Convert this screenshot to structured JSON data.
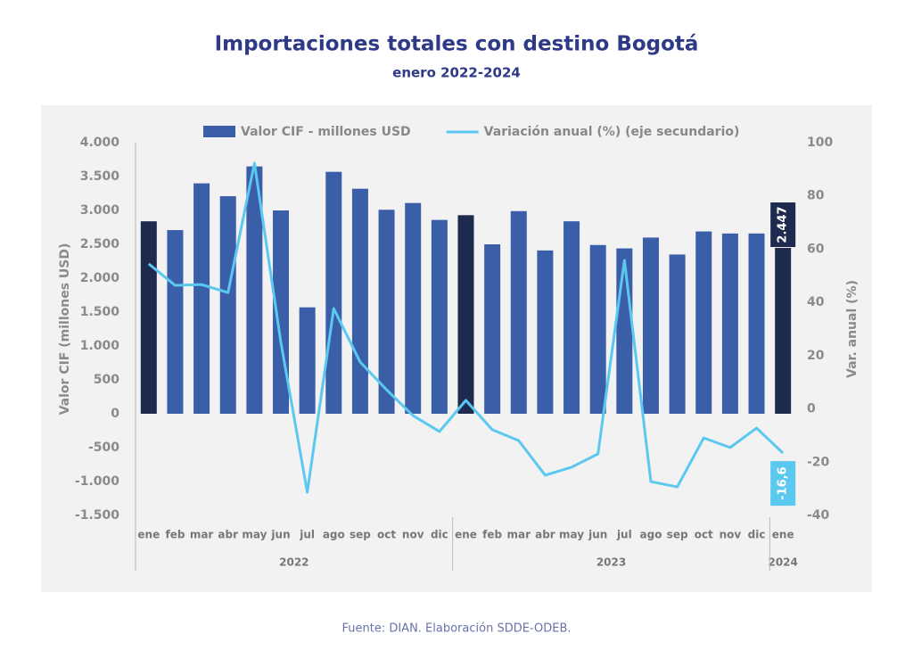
{
  "chart_data": {
    "type": "bar_line",
    "title": "Importaciones totales con destino Bogotá",
    "subtitle": "enero 2022-2024",
    "source": "Fuente: DIAN. Elaboración SDDE-ODEB.",
    "y_label": "Valor CIF (millones USD)",
    "y2_label": "Var. anual (%)",
    "category_groups": [
      {
        "label": "2022",
        "categories": [
          "ene",
          "feb",
          "mar",
          "abr",
          "may",
          "jun",
          "jul",
          "ago",
          "sep",
          "oct",
          "nov",
          "dic"
        ]
      },
      {
        "label": "2023",
        "categories": [
          "ene",
          "feb",
          "mar",
          "abr",
          "may",
          "jun",
          "jul",
          "ago",
          "sep",
          "oct",
          "nov",
          "dic"
        ]
      },
      {
        "label": "2024",
        "categories": [
          "ene"
        ]
      }
    ],
    "series": [
      {
        "name": "Valor CIF - millones USD",
        "kind": "bar",
        "color": "#3a5fa8",
        "colors": [
          "#1f2a4f",
          "#3a5fa8",
          "#3a5fa8",
          "#3a5fa8",
          "#3a5fa8",
          "#3a5fa8",
          "#3a5fa8",
          "#3a5fa8",
          "#3a5fa8",
          "#3a5fa8",
          "#3a5fa8",
          "#3a5fa8",
          "#1f2a4f",
          "#3a5fa8",
          "#3a5fa8",
          "#3a5fa8",
          "#3a5fa8",
          "#3a5fa8",
          "#3a5fa8",
          "#3a5fa8",
          "#3a5fa8",
          "#3a5fa8",
          "#3a5fa8",
          "#3a5fa8",
          "#1f2a4f"
        ],
        "values": [
          2840,
          2710,
          3400,
          3210,
          3650,
          3000,
          1570,
          3570,
          3320,
          3010,
          3110,
          2860,
          2930,
          2500,
          2990,
          2410,
          2840,
          2490,
          2440,
          2600,
          2350,
          2690,
          2660,
          2660,
          2447
        ],
        "value_labels": [
          null,
          null,
          null,
          null,
          null,
          null,
          null,
          null,
          null,
          null,
          null,
          null,
          null,
          null,
          null,
          null,
          null,
          null,
          null,
          null,
          null,
          null,
          null,
          null,
          "2.447"
        ]
      },
      {
        "name": "Variación anual (%) (eje secundario)",
        "kind": "line",
        "axis": "y2",
        "color": "#5bc8ef",
        "values": [
          54.5,
          46.4,
          46.7,
          43.7,
          92.3,
          25,
          -31.3,
          37.7,
          17.6,
          7.2,
          -2.5,
          -8.5,
          3.2,
          -7.8,
          -11.9,
          -24.9,
          -21.9,
          -16.9,
          55.8,
          -27.3,
          -29.3,
          -10.9,
          -14.5,
          -7.2,
          -16.6
        ],
        "value_labels": [
          null,
          null,
          null,
          null,
          null,
          null,
          null,
          null,
          null,
          null,
          null,
          null,
          null,
          null,
          null,
          null,
          null,
          null,
          null,
          null,
          null,
          null,
          null,
          null,
          "-16,6"
        ]
      }
    ],
    "ylim": [
      -1500,
      4000
    ],
    "yticks": [
      {
        "value": -1500,
        "label": "-1.500"
      },
      {
        "value": -1000,
        "label": "-1.000"
      },
      -500,
      0,
      500,
      {
        "value": 1000,
        "label": "1.000"
      },
      {
        "value": 1500,
        "label": "1.500"
      },
      {
        "value": 2000,
        "label": "2.000"
      },
      {
        "value": 2500,
        "label": "2.500"
      },
      {
        "value": 3000,
        "label": "3.000"
      },
      {
        "value": 3500,
        "label": "3.500"
      },
      {
        "value": 4000,
        "label": "4.000"
      }
    ],
    "y2lim": [
      -40,
      100
    ],
    "y2ticks": [
      -40,
      -20,
      0,
      20,
      40,
      60,
      80,
      100
    ],
    "legend": "top"
  }
}
